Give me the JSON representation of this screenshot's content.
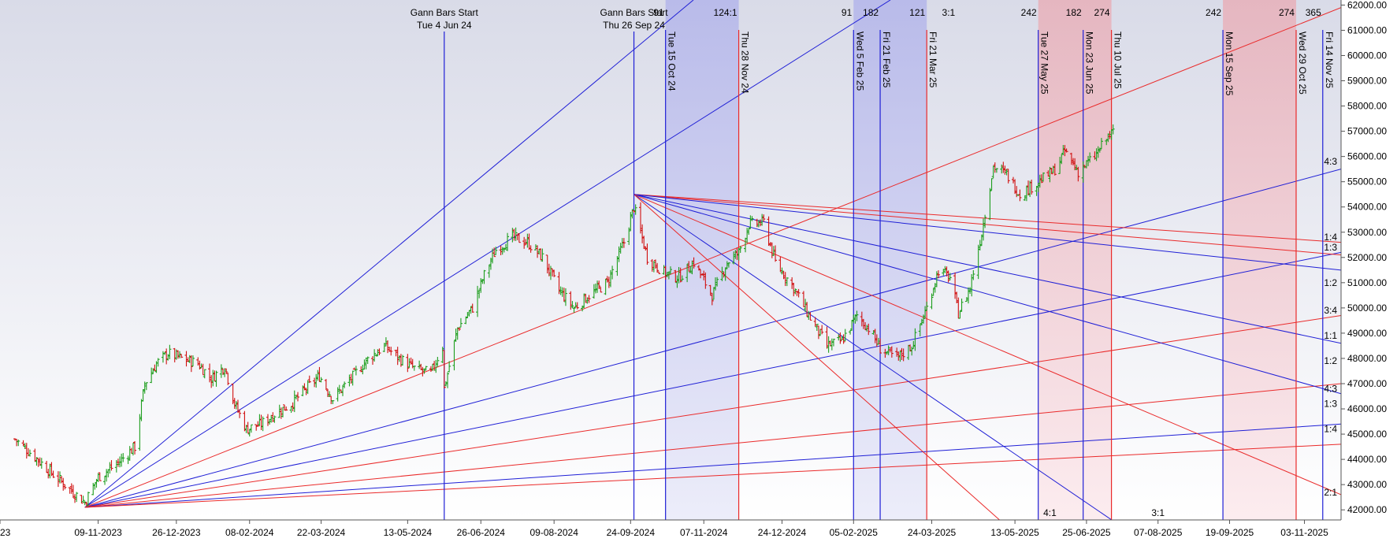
{
  "chart_data": {
    "type": "ohlc",
    "title": "",
    "xlabel": "",
    "ylabel": "",
    "ylim": [
      41600,
      62200
    ],
    "grid": false,
    "y_ticks": [
      42000,
      43000,
      44000,
      45000,
      46000,
      47000,
      48000,
      49000,
      50000,
      51000,
      52000,
      53000,
      54000,
      55000,
      56000,
      57000,
      58000,
      59000,
      60000,
      61000,
      62000
    ],
    "y_tick_labels": [
      "42000.00",
      "43000.00",
      "44000.00",
      "45000.00",
      "46000.00",
      "47000.00",
      "48000.00",
      "49000.00",
      "50000.00",
      "51000.00",
      "52000.00",
      "53000.00",
      "54000.00",
      "55000.00",
      "56000.00",
      "57000.00",
      "58000.00",
      "59000.00",
      "60000.00",
      "61000.00",
      "62000.00"
    ],
    "x_ticks": [
      {
        "date": "2023-09-11",
        "label": "23"
      },
      {
        "date": "2023-11-09",
        "label": "09-11-2023"
      },
      {
        "date": "2023-12-26",
        "label": "26-12-2023"
      },
      {
        "date": "2024-02-08",
        "label": "08-02-2024"
      },
      {
        "date": "2024-03-22",
        "label": "22-03-2024"
      },
      {
        "date": "2024-05-13",
        "label": "13-05-2024"
      },
      {
        "date": "2024-06-26",
        "label": "26-06-2024"
      },
      {
        "date": "2024-08-09",
        "label": "09-08-2024"
      },
      {
        "date": "2024-09-24",
        "label": "24-09-2024"
      },
      {
        "date": "2024-11-07",
        "label": "07-11-2024"
      },
      {
        "date": "2024-12-24",
        "label": "24-12-2024"
      },
      {
        "date": "2025-02-05",
        "label": "05-02-2025"
      },
      {
        "date": "2025-03-24",
        "label": "24-03-2025"
      },
      {
        "date": "2025-05-13",
        "label": "13-05-2025"
      },
      {
        "date": "2025-06-25",
        "label": "25-06-2025"
      },
      {
        "date": "2025-08-07",
        "label": "07-08-2025"
      },
      {
        "date": "2025-09-19",
        "label": "19-09-2025"
      },
      {
        "date": "2025-11-03",
        "label": "03-11-2025"
      }
    ],
    "series": [
      {
        "values": [
          [
            "2023-09-20",
            44800
          ],
          [
            "2023-10-02",
            44100
          ],
          [
            "2023-10-13",
            43400
          ],
          [
            "2023-10-25",
            42700
          ],
          [
            "2023-11-01",
            42300
          ],
          [
            "2023-11-09",
            43300
          ],
          [
            "2023-11-20",
            43800
          ],
          [
            "2023-12-01",
            44500
          ],
          [
            "2023-12-07",
            47000
          ],
          [
            "2023-12-14",
            47800
          ],
          [
            "2023-12-21",
            48200
          ],
          [
            "2023-12-29",
            48000
          ],
          [
            "2024-01-08",
            47800
          ],
          [
            "2024-01-16",
            47200
          ],
          [
            "2024-01-24",
            47700
          ],
          [
            "2024-01-30",
            46200
          ],
          [
            "2024-02-06",
            45200
          ],
          [
            "2024-02-15",
            45400
          ],
          [
            "2024-02-23",
            45800
          ],
          [
            "2024-03-04",
            46200
          ],
          [
            "2024-03-13",
            46800
          ],
          [
            "2024-03-21",
            47300
          ],
          [
            "2024-03-29",
            46400
          ],
          [
            "2024-04-09",
            47200
          ],
          [
            "2024-04-18",
            47900
          ],
          [
            "2024-04-29",
            48500
          ],
          [
            "2024-05-08",
            48000
          ],
          [
            "2024-05-17",
            47600
          ],
          [
            "2024-05-27",
            47400
          ],
          [
            "2024-06-03",
            48500
          ],
          [
            "2024-06-04",
            46800
          ],
          [
            "2024-06-12",
            49200
          ],
          [
            "2024-06-21",
            50000
          ],
          [
            "2024-06-28",
            51300
          ],
          [
            "2024-07-05",
            52300
          ],
          [
            "2024-07-15",
            52800
          ],
          [
            "2024-07-24",
            52600
          ],
          [
            "2024-08-02",
            52000
          ],
          [
            "2024-08-12",
            50700
          ],
          [
            "2024-08-21",
            50000
          ],
          [
            "2024-08-30",
            50500
          ],
          [
            "2024-09-10",
            51000
          ],
          [
            "2024-09-20",
            52600
          ],
          [
            "2024-09-26",
            54000
          ],
          [
            "2024-10-04",
            52000
          ],
          [
            "2024-10-14",
            51400
          ],
          [
            "2024-10-23",
            51200
          ],
          [
            "2024-11-01",
            51800
          ],
          [
            "2024-11-12",
            50500
          ],
          [
            "2024-11-21",
            51800
          ],
          [
            "2024-11-28",
            52200
          ],
          [
            "2024-12-04",
            53300
          ],
          [
            "2024-12-13",
            53400
          ],
          [
            "2024-12-20",
            51800
          ],
          [
            "2024-12-31",
            50800
          ],
          [
            "2025-01-10",
            49600
          ],
          [
            "2025-01-20",
            48500
          ],
          [
            "2025-01-29",
            48700
          ],
          [
            "2025-02-07",
            49700
          ],
          [
            "2025-02-14",
            49200
          ],
          [
            "2025-02-21",
            48400
          ],
          [
            "2025-03-03",
            48000
          ],
          [
            "2025-03-12",
            48500
          ],
          [
            "2025-03-21",
            50000
          ],
          [
            "2025-03-28",
            51500
          ],
          [
            "2025-04-04",
            51200
          ],
          [
            "2025-04-09",
            49800
          ],
          [
            "2025-04-16",
            50800
          ],
          [
            "2025-04-23",
            53000
          ],
          [
            "2025-04-30",
            55600
          ],
          [
            "2025-05-08",
            55300
          ],
          [
            "2025-05-16",
            54500
          ],
          [
            "2025-05-27",
            55000
          ],
          [
            "2025-06-05",
            55400
          ],
          [
            "2025-06-12",
            56200
          ],
          [
            "2025-06-20",
            55400
          ],
          [
            "2025-06-30",
            56000
          ],
          [
            "2025-07-08",
            56800
          ],
          [
            "2025-07-14",
            57100
          ]
        ]
      }
    ],
    "annotations": {
      "gann_start": [
        {
          "date": "2024-06-04",
          "line1": "Gann Bars Start",
          "line2": "Tue 4 Jun 24"
        },
        {
          "date": "2024-09-26",
          "line1": "Gann Bars Start",
          "line2": "Thu 26 Sep 24"
        }
      ],
      "date_lines": [
        {
          "date": "2024-10-15",
          "label": "Tue 15 Oct 24",
          "color": "#1f1fd6"
        },
        {
          "date": "2024-11-28",
          "label": "Thu 28 Nov 24",
          "color": "#ea2a2a"
        },
        {
          "date": "2025-02-05",
          "label": "Wed 5 Feb 25",
          "color": "#1f1fd6"
        },
        {
          "date": "2025-02-21",
          "label": "Fri 21 Feb 25",
          "color": "#1f1fd6"
        },
        {
          "date": "2025-03-21",
          "label": "Fri 21 Mar 25",
          "color": "#ea2a2a"
        },
        {
          "date": "2025-05-27",
          "label": "Tue 27 May 25",
          "color": "#1f1fd6"
        },
        {
          "date": "2025-06-23",
          "label": "Mon 23 Jun 25",
          "color": "#1f1fd6"
        },
        {
          "date": "2025-07-10",
          "label": "Thu 10 Jul 25",
          "color": "#ea2a2a"
        },
        {
          "date": "2025-09-15",
          "label": "Mon 15 Sep 25",
          "color": "#1f1fd6"
        },
        {
          "date": "2025-10-29",
          "label": "Wed 29 Oct 25",
          "color": "#ea2a2a"
        },
        {
          "date": "2025-11-14",
          "label": "Fri 14 Nov 25",
          "color": "#1f1fd6"
        }
      ],
      "top_counts": [
        {
          "date": "2024-10-15",
          "label": "91"
        },
        {
          "date": "2024-11-28",
          "label": "124:1"
        },
        {
          "date": "2025-02-05",
          "label": "91"
        },
        {
          "date": "2025-02-21",
          "label": "182"
        },
        {
          "date": "2025-03-21",
          "label": "121"
        },
        {
          "date": "2025-04-08",
          "label": "3:1"
        },
        {
          "date": "2025-05-27",
          "label": "242"
        },
        {
          "date": "2025-06-23",
          "label": "182"
        },
        {
          "date": "2025-07-10",
          "label": "274"
        },
        {
          "date": "2025-09-15",
          "label": "242"
        },
        {
          "date": "2025-10-29",
          "label": "274"
        },
        {
          "date": "2025-11-14",
          "label": "365"
        }
      ],
      "bands": [
        {
          "from": "2024-10-15",
          "to": "2024-11-28",
          "color": "blue"
        },
        {
          "from": "2025-02-05",
          "to": "2025-03-21",
          "color": "blue"
        },
        {
          "from": "2025-05-27",
          "to": "2025-07-10",
          "color": "red"
        },
        {
          "from": "2025-09-15",
          "to": "2025-10-29",
          "color": "red"
        }
      ],
      "fan_labels": [
        {
          "label": "4:3",
          "value": 55800
        },
        {
          "label": "1:4",
          "value": 52800
        },
        {
          "label": "1:3",
          "value": 52400
        },
        {
          "label": "1:2",
          "value": 51000
        },
        {
          "label": "3:4",
          "value": 49900
        },
        {
          "label": "1:1",
          "value": 48900
        },
        {
          "label": "1:2",
          "value": 47900
        },
        {
          "label": "4:3",
          "value": 46800
        },
        {
          "label": "1:3",
          "value": 46200
        },
        {
          "label": "1:4",
          "value": 45200
        },
        {
          "label": "2:1",
          "value": 42700
        }
      ],
      "bottom_labels": [
        {
          "date": "2025-06-03",
          "label": "4:1"
        },
        {
          "date": "2025-08-07",
          "label": "3:1"
        }
      ],
      "fan1_origin": {
        "date": "2023-11-01",
        "value": 42100
      },
      "fan2_origin": {
        "date": "2024-09-26",
        "value": 54500
      }
    }
  },
  "colors": {
    "blue": "#1f1fd6",
    "red": "#ea2a2a",
    "up": "#1e9e1e",
    "down": "#d01010",
    "band_blue": "#b7b8ec",
    "band_red": "#eebbc0"
  }
}
